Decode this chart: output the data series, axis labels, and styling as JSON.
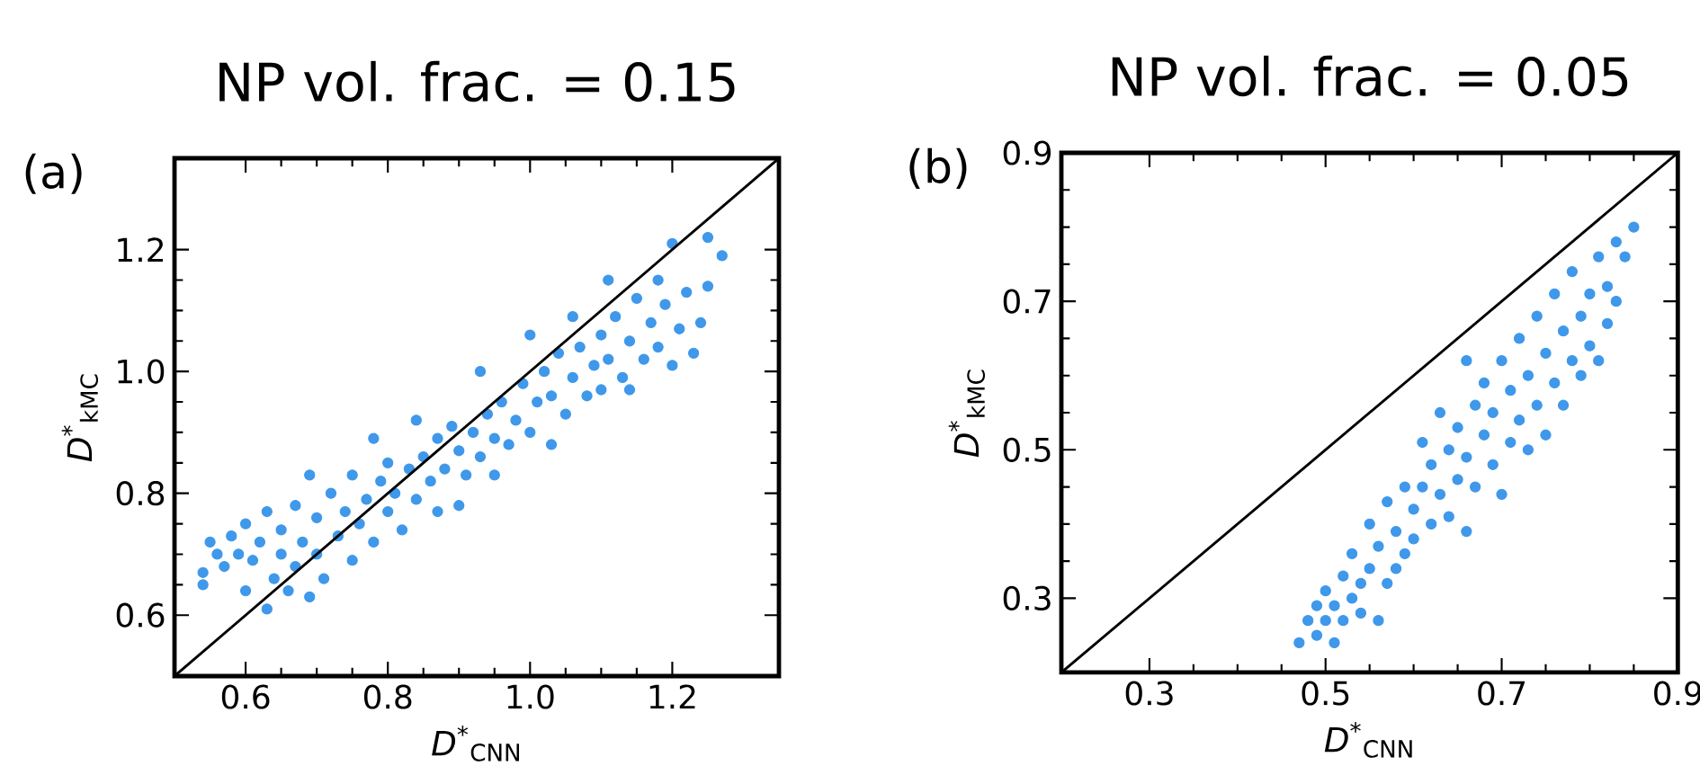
{
  "chart_data": [
    {
      "type": "scatter",
      "title": "NP vol. frac. = 0.15",
      "xlabel": "*D*$^{*}$$_{CNN}$",
      "ylabel": "*D*$^{*}$$_{kMC}$",
      "annotations": [
        "(a)"
      ],
      "xlim": [
        0.5,
        1.35
      ],
      "ylim": [
        0.5,
        1.35
      ],
      "xticks": [
        0.6,
        0.8,
        {
          "value": 1.0,
          "label": "1.0"
        },
        1.2
      ],
      "yticks": [
        0.6,
        0.8,
        {
          "value": 1.0,
          "label": "1.0"
        },
        1.2
      ],
      "series": [
        {
          "marker": "circle",
          "color": "#3f98ea",
          "x": [
            0.54,
            0.54,
            0.55,
            0.56,
            0.57,
            0.58,
            0.59,
            0.6,
            0.6,
            0.61,
            0.62,
            0.63,
            0.63,
            0.64,
            0.65,
            0.65,
            0.66,
            0.67,
            0.67,
            0.68,
            0.69,
            0.69,
            0.7,
            0.7,
            0.71,
            0.72,
            0.73,
            0.74,
            0.75,
            0.75,
            0.76,
            0.77,
            0.78,
            0.78,
            0.79,
            0.8,
            0.8,
            0.81,
            0.82,
            0.83,
            0.84,
            0.84,
            0.85,
            0.86,
            0.87,
            0.87,
            0.88,
            0.89,
            0.9,
            0.9,
            0.91,
            0.92,
            0.93,
            0.93,
            0.94,
            0.95,
            0.95,
            0.96,
            0.97,
            0.98,
            0.99,
            1.0,
            1.0,
            1.01,
            1.02,
            1.03,
            1.03,
            1.04,
            1.05,
            1.06,
            1.06,
            1.07,
            1.08,
            1.09,
            1.1,
            1.1,
            1.11,
            1.11,
            1.12,
            1.13,
            1.14,
            1.14,
            1.15,
            1.16,
            1.17,
            1.18,
            1.18,
            1.19,
            1.2,
            1.2,
            1.21,
            1.22,
            1.23,
            1.24,
            1.25,
            1.25,
            1.27
          ],
          "values": [
            0.65,
            0.67,
            0.72,
            0.7,
            0.68,
            0.73,
            0.7,
            0.64,
            0.75,
            0.69,
            0.72,
            0.61,
            0.77,
            0.66,
            0.7,
            0.74,
            0.64,
            0.68,
            0.78,
            0.72,
            0.63,
            0.83,
            0.7,
            0.76,
            0.66,
            0.8,
            0.73,
            0.77,
            0.69,
            0.83,
            0.75,
            0.79,
            0.72,
            0.89,
            0.82,
            0.77,
            0.85,
            0.8,
            0.74,
            0.84,
            0.92,
            0.79,
            0.86,
            0.82,
            0.77,
            0.89,
            0.84,
            0.91,
            0.78,
            0.87,
            0.83,
            0.9,
            1.0,
            0.86,
            0.93,
            0.83,
            0.89,
            0.95,
            0.88,
            0.92,
            0.98,
            0.9,
            1.06,
            0.95,
            1.0,
            0.88,
            0.96,
            1.03,
            0.93,
            1.09,
            0.99,
            1.04,
            0.96,
            1.01,
            0.97,
            1.06,
            1.15,
            1.02,
            1.09,
            0.99,
            0.97,
            1.05,
            1.12,
            1.02,
            1.08,
            1.04,
            1.15,
            1.11,
            1.21,
            1.01,
            1.07,
            1.13,
            1.03,
            1.08,
            1.22,
            1.14,
            1.19
          ]
        },
        {
          "type": "line",
          "color": "#000000",
          "x": [
            0.5,
            1.35
          ],
          "values": [
            0.5,
            1.35
          ]
        }
      ]
    },
    {
      "type": "scatter",
      "title": "NP vol. frac. = 0.05",
      "xlabel": "*D*$^{*}$$_{CNN}$",
      "ylabel": "*D*$^{*}$$_{kMC}$",
      "annotations": [
        "(b)"
      ],
      "xlim": [
        0.2,
        0.9
      ],
      "ylim": [
        0.2,
        0.9
      ],
      "xticks": [
        0.3,
        0.5,
        0.7,
        0.9
      ],
      "yticks": [
        0.3,
        0.5,
        0.7,
        0.9
      ],
      "series": [
        {
          "marker": "circle",
          "color": "#3f98ea",
          "x": [
            0.47,
            0.48,
            0.49,
            0.49,
            0.5,
            0.5,
            0.51,
            0.51,
            0.52,
            0.52,
            0.53,
            0.53,
            0.54,
            0.54,
            0.55,
            0.55,
            0.56,
            0.56,
            0.57,
            0.57,
            0.58,
            0.58,
            0.59,
            0.59,
            0.6,
            0.6,
            0.61,
            0.61,
            0.62,
            0.62,
            0.63,
            0.63,
            0.64,
            0.64,
            0.65,
            0.65,
            0.66,
            0.66,
            0.66,
            0.67,
            0.67,
            0.68,
            0.68,
            0.69,
            0.69,
            0.7,
            0.7,
            0.71,
            0.71,
            0.72,
            0.72,
            0.73,
            0.73,
            0.74,
            0.74,
            0.75,
            0.75,
            0.76,
            0.76,
            0.77,
            0.77,
            0.78,
            0.78,
            0.79,
            0.79,
            0.8,
            0.8,
            0.81,
            0.81,
            0.82,
            0.82,
            0.83,
            0.83,
            0.84,
            0.85
          ],
          "values": [
            0.24,
            0.27,
            0.29,
            0.25,
            0.31,
            0.27,
            0.24,
            0.29,
            0.33,
            0.27,
            0.3,
            0.36,
            0.32,
            0.28,
            0.34,
            0.4,
            0.27,
            0.37,
            0.32,
            0.43,
            0.39,
            0.34,
            0.45,
            0.36,
            0.42,
            0.38,
            0.51,
            0.45,
            0.4,
            0.48,
            0.55,
            0.44,
            0.5,
            0.41,
            0.53,
            0.46,
            0.62,
            0.39,
            0.49,
            0.56,
            0.45,
            0.52,
            0.59,
            0.48,
            0.55,
            0.62,
            0.44,
            0.51,
            0.58,
            0.65,
            0.54,
            0.5,
            0.6,
            0.68,
            0.56,
            0.63,
            0.52,
            0.59,
            0.71,
            0.66,
            0.56,
            0.62,
            0.74,
            0.68,
            0.6,
            0.71,
            0.64,
            0.76,
            0.62,
            0.67,
            0.72,
            0.78,
            0.7,
            0.76,
            0.8
          ]
        },
        {
          "type": "line",
          "color": "#000000",
          "x": [
            0.2,
            0.9
          ],
          "values": [
            0.2,
            0.9
          ]
        }
      ]
    }
  ]
}
